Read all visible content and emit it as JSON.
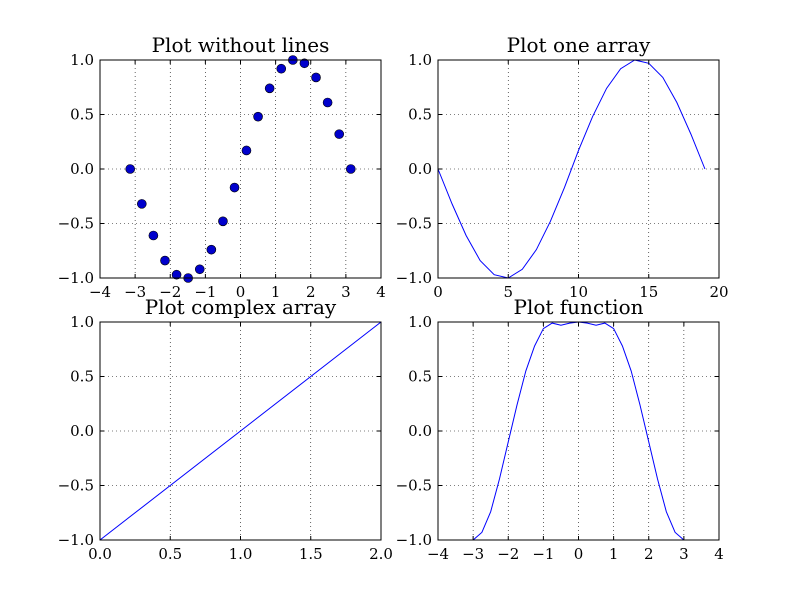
{
  "chart_data": [
    {
      "type": "scatter",
      "title": "Plot without lines",
      "xlabel": "",
      "ylabel": "",
      "xlim": [
        -4,
        4
      ],
      "ylim": [
        -1.0,
        1.0
      ],
      "xticks": [
        "−4",
        "−3",
        "−2",
        "−1",
        "0",
        "1",
        "2",
        "3",
        "4"
      ],
      "yticks": [
        "−1.0",
        "−0.5",
        "0.0",
        "0.5",
        "1.0"
      ],
      "grid": true,
      "color": "#0000cc",
      "series": [
        {
          "x": [
            -3.14,
            -2.81,
            -2.48,
            -2.15,
            -1.82,
            -1.49,
            -1.16,
            -0.83,
            -0.5,
            -0.17,
            0.17,
            0.5,
            0.83,
            1.16,
            1.49,
            1.82,
            2.15,
            2.48,
            2.81,
            3.14
          ],
          "y": [
            0.0,
            -0.32,
            -0.61,
            -0.84,
            -0.97,
            -1.0,
            -0.92,
            -0.74,
            -0.48,
            -0.17,
            0.17,
            0.48,
            0.74,
            0.92,
            1.0,
            0.97,
            0.84,
            0.61,
            0.32,
            0.0
          ]
        }
      ]
    },
    {
      "type": "line",
      "title": "Plot one array",
      "xlabel": "",
      "ylabel": "",
      "xlim": [
        0,
        20
      ],
      "ylim": [
        -1.0,
        1.0
      ],
      "xticks": [
        "0",
        "5",
        "10",
        "15",
        "20"
      ],
      "yticks": [
        "−1.0",
        "−0.5",
        "0.0",
        "0.5",
        "1.0"
      ],
      "grid": true,
      "color": "#0000ff",
      "series": [
        {
          "x": [
            0,
            1,
            2,
            3,
            4,
            5,
            6,
            7,
            8,
            9,
            10,
            11,
            12,
            13,
            14,
            15,
            16,
            17,
            18,
            19
          ],
          "y": [
            0.0,
            -0.32,
            -0.61,
            -0.84,
            -0.97,
            -1.0,
            -0.92,
            -0.74,
            -0.48,
            -0.17,
            0.17,
            0.48,
            0.74,
            0.92,
            1.0,
            0.97,
            0.84,
            0.61,
            0.32,
            0.0
          ]
        }
      ]
    },
    {
      "type": "line",
      "title": "Plot complex array",
      "xlabel": "",
      "ylabel": "",
      "xlim": [
        0.0,
        2.0
      ],
      "ylim": [
        -1.0,
        1.0
      ],
      "xticks": [
        "0.0",
        "0.5",
        "1.0",
        "1.5",
        "2.0"
      ],
      "yticks": [
        "−1.0",
        "−0.5",
        "0.0",
        "0.5",
        "1.0"
      ],
      "grid": true,
      "color": "#0000ff",
      "series": [
        {
          "x": [
            0.0,
            2.0
          ],
          "y": [
            -1.0,
            1.0
          ]
        }
      ]
    },
    {
      "type": "line",
      "title": "Plot function",
      "xlabel": "",
      "ylabel": "",
      "xlim": [
        -4,
        4
      ],
      "ylim": [
        -1.0,
        1.0
      ],
      "xticks": [
        "−4",
        "−3",
        "−2",
        "−1",
        "0",
        "1",
        "2",
        "3",
        "4"
      ],
      "yticks": [
        "−1.0",
        "−0.5",
        "0.0",
        "0.5",
        "1.0"
      ],
      "grid": true,
      "color": "#0000ff",
      "series": [
        {
          "x": [
            -3.0,
            -2.75,
            -2.5,
            -2.25,
            -2.0,
            -1.75,
            -1.5,
            -1.25,
            -1.0,
            -0.75,
            -0.5,
            -0.25,
            0.0,
            0.25,
            0.5,
            0.75,
            1.0,
            1.25,
            1.5,
            1.75,
            2.0,
            2.25,
            2.5,
            2.75,
            3.0
          ],
          "y": [
            -1.0,
            -0.93,
            -0.74,
            -0.44,
            -0.1,
            0.24,
            0.55,
            0.78,
            0.94,
            0.99,
            0.97,
            0.99,
            1.0,
            0.99,
            0.97,
            0.99,
            0.94,
            0.78,
            0.55,
            0.24,
            -0.1,
            -0.44,
            -0.74,
            -0.93,
            -1.0
          ]
        }
      ]
    }
  ]
}
